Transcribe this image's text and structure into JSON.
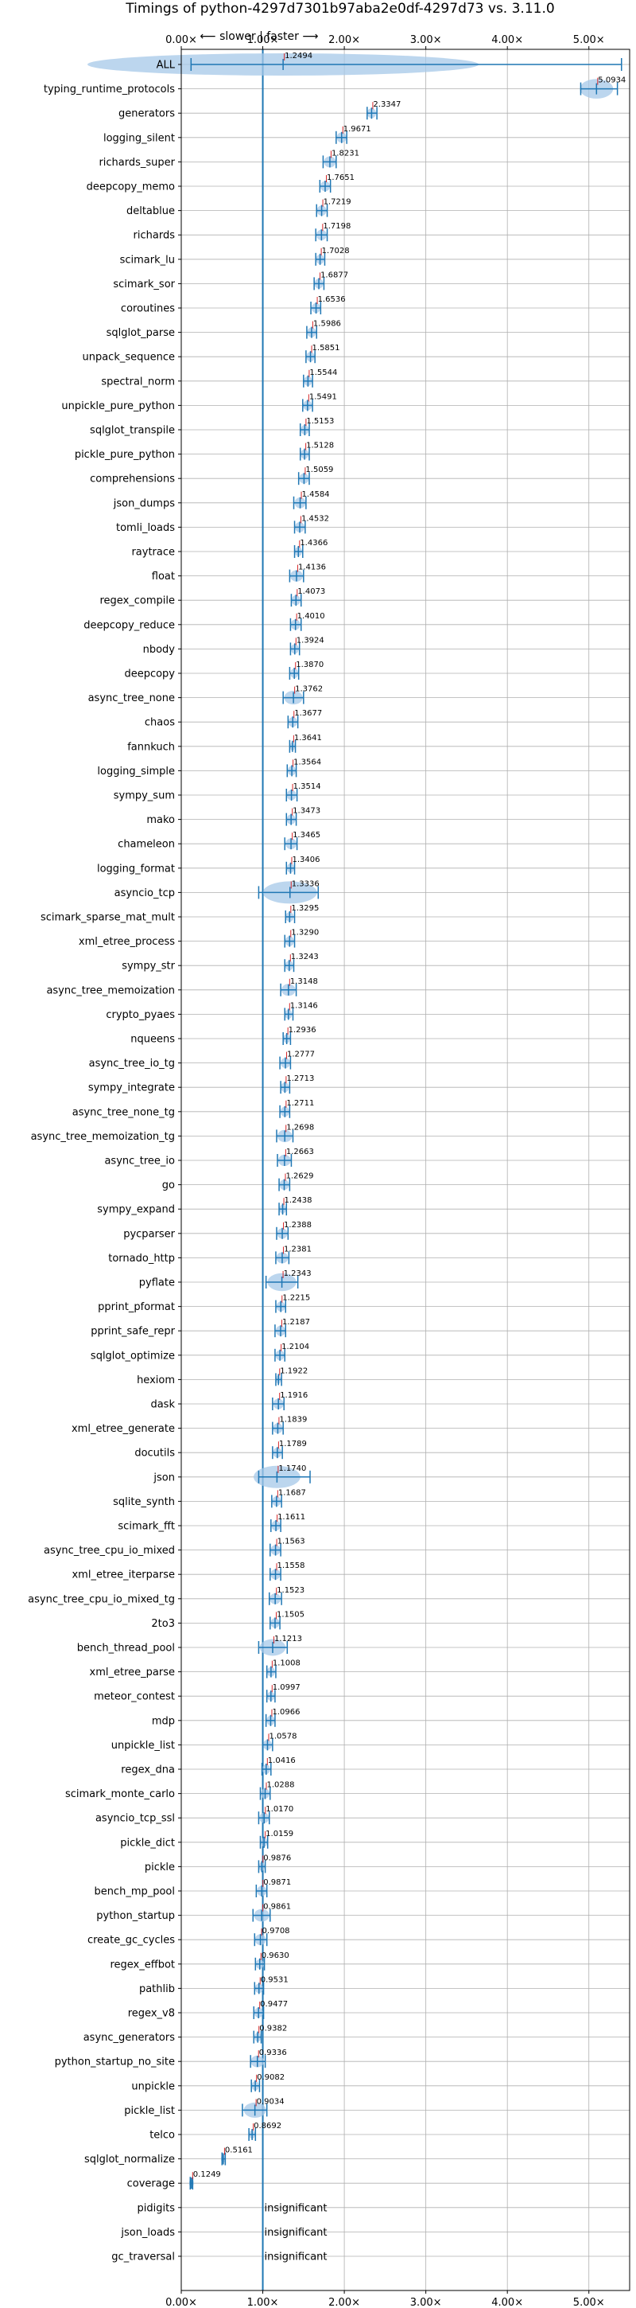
{
  "chart_data": {
    "type": "violin",
    "title": "Timings of python-4297d7301b97aba2e0df-4297d73 vs. 3.11.0",
    "subtitle": "⟵ slower  |  faster ⟶",
    "xlim": [
      0,
      5.5
    ],
    "xticks": [
      0,
      1,
      2,
      3,
      4,
      5
    ],
    "xtick_labels": [
      "0.00×",
      "1.00×",
      "2.00×",
      "3.00×",
      "4.00×",
      "5.00×"
    ],
    "reference_line": 1.0,
    "grid": true,
    "insignificant_label": "insignificant",
    "categories": [
      "ALL",
      "typing_runtime_protocols",
      "generators",
      "logging_silent",
      "richards_super",
      "deepcopy_memo",
      "deltablue",
      "richards",
      "scimark_lu",
      "scimark_sor",
      "coroutines",
      "sqlglot_parse",
      "unpack_sequence",
      "spectral_norm",
      "unpickle_pure_python",
      "sqlglot_transpile",
      "pickle_pure_python",
      "comprehensions",
      "json_dumps",
      "tomli_loads",
      "raytrace",
      "float",
      "regex_compile",
      "deepcopy_reduce",
      "nbody",
      "deepcopy",
      "async_tree_none",
      "chaos",
      "fannkuch",
      "logging_simple",
      "sympy_sum",
      "mako",
      "chameleon",
      "logging_format",
      "asyncio_tcp",
      "scimark_sparse_mat_mult",
      "xml_etree_process",
      "sympy_str",
      "async_tree_memoization",
      "crypto_pyaes",
      "nqueens",
      "async_tree_io_tg",
      "sympy_integrate",
      "async_tree_none_tg",
      "async_tree_memoization_tg",
      "async_tree_io",
      "go",
      "sympy_expand",
      "pycparser",
      "tornado_http",
      "pyflate",
      "pprint_pformat",
      "pprint_safe_repr",
      "sqlglot_optimize",
      "hexiom",
      "dask",
      "xml_etree_generate",
      "docutils",
      "json",
      "sqlite_synth",
      "scimark_fft",
      "async_tree_cpu_io_mixed",
      "xml_etree_iterparse",
      "async_tree_cpu_io_mixed_tg",
      "2to3",
      "bench_thread_pool",
      "xml_etree_parse",
      "meteor_contest",
      "mdp",
      "unpickle_list",
      "regex_dna",
      "scimark_monte_carlo",
      "asyncio_tcp_ssl",
      "pickle_dict",
      "pickle",
      "bench_mp_pool",
      "python_startup",
      "create_gc_cycles",
      "regex_effbot",
      "pathlib",
      "regex_v8",
      "async_generators",
      "python_startup_no_site",
      "unpickle",
      "pickle_list",
      "telco",
      "sqlglot_normalize",
      "coverage",
      "pidigits",
      "json_loads",
      "gc_traversal"
    ],
    "values": [
      1.2494,
      5.0934,
      2.3347,
      1.9671,
      1.8231,
      1.7651,
      1.7219,
      1.7198,
      1.7028,
      1.6877,
      1.6536,
      1.5986,
      1.5851,
      1.5544,
      1.5491,
      1.5153,
      1.5128,
      1.5059,
      1.4584,
      1.4532,
      1.4366,
      1.4136,
      1.4073,
      1.401,
      1.3924,
      1.387,
      1.3762,
      1.3677,
      1.3641,
      1.3564,
      1.3514,
      1.3473,
      1.3465,
      1.3406,
      1.3336,
      1.3295,
      1.329,
      1.3243,
      1.3148,
      1.3146,
      1.2936,
      1.2777,
      1.2713,
      1.2711,
      1.2698,
      1.2663,
      1.2629,
      1.2438,
      1.2388,
      1.2381,
      1.2343,
      1.2215,
      1.2187,
      1.2104,
      1.1922,
      1.1916,
      1.1839,
      1.1789,
      1.174,
      1.1687,
      1.1611,
      1.1563,
      1.1558,
      1.1523,
      1.1505,
      1.1213,
      1.1008,
      1.0997,
      1.0966,
      1.0578,
      1.0416,
      1.0288,
      1.017,
      1.0159,
      0.9876,
      0.9871,
      0.9861,
      0.9708,
      0.963,
      0.9531,
      0.9477,
      0.9382,
      0.9336,
      0.9082,
      0.9034,
      0.8692,
      0.5161,
      0.1249,
      null,
      null,
      null
    ],
    "value_labels": [
      "1.2494",
      "5.0934",
      "2.3347",
      "1.9671",
      "1.8231",
      "1.7651",
      "1.7219",
      "1.7198",
      "1.7028",
      "1.6877",
      "1.6536",
      "1.5986",
      "1.5851",
      "1.5544",
      "1.5491",
      "1.5153",
      "1.5128",
      "1.5059",
      "1.4584",
      "1.4532",
      "1.4366",
      "1.4136",
      "1.4073",
      "1.4010",
      "1.3924",
      "1.3870",
      "1.3762",
      "1.3677",
      "1.3641",
      "1.3564",
      "1.3514",
      "1.3473",
      "1.3465",
      "1.3406",
      "1.3336",
      "1.3295",
      "1.3290",
      "1.3243",
      "1.3148",
      "1.3146",
      "1.2936",
      "1.2777",
      "1.2713",
      "1.2711",
      "1.2698",
      "1.2663",
      "1.2629",
      "1.2438",
      "1.2388",
      "1.2381",
      "1.2343",
      "1.2215",
      "1.2187",
      "1.2104",
      "1.1922",
      "1.1916",
      "1.1839",
      "1.1789",
      "1.1740",
      "1.1687",
      "1.1611",
      "1.1563",
      "1.1558",
      "1.1523",
      "1.1505",
      "1.1213",
      "1.1008",
      "1.0997",
      "1.0966",
      "1.0578",
      "1.0416",
      "1.0288",
      "1.0170",
      "1.0159",
      "0.9876",
      "0.9871",
      "0.9861",
      "0.9708",
      "0.9630",
      "0.9531",
      "0.9477",
      "0.9382",
      "0.9336",
      "0.9082",
      "0.9034",
      "0.8692",
      "0.5161",
      "0.1249",
      "",
      "",
      ""
    ],
    "ranges": [
      [
        0.12,
        5.4
      ],
      [
        4.9,
        5.35
      ],
      [
        2.28,
        2.4
      ],
      [
        1.9,
        2.03
      ],
      [
        1.74,
        1.9
      ],
      [
        1.7,
        1.83
      ],
      [
        1.66,
        1.79
      ],
      [
        1.65,
        1.79
      ],
      [
        1.65,
        1.76
      ],
      [
        1.63,
        1.75
      ],
      [
        1.59,
        1.71
      ],
      [
        1.54,
        1.66
      ],
      [
        1.53,
        1.64
      ],
      [
        1.5,
        1.61
      ],
      [
        1.49,
        1.61
      ],
      [
        1.46,
        1.57
      ],
      [
        1.46,
        1.57
      ],
      [
        1.44,
        1.57
      ],
      [
        1.38,
        1.53
      ],
      [
        1.39,
        1.52
      ],
      [
        1.39,
        1.49
      ],
      [
        1.33,
        1.5
      ],
      [
        1.35,
        1.47
      ],
      [
        1.34,
        1.47
      ],
      [
        1.34,
        1.45
      ],
      [
        1.33,
        1.44
      ],
      [
        1.25,
        1.5
      ],
      [
        1.31,
        1.43
      ],
      [
        1.33,
        1.4
      ],
      [
        1.3,
        1.41
      ],
      [
        1.29,
        1.42
      ],
      [
        1.29,
        1.41
      ],
      [
        1.27,
        1.42
      ],
      [
        1.29,
        1.39
      ],
      [
        0.95,
        1.68
      ],
      [
        1.28,
        1.39
      ],
      [
        1.27,
        1.39
      ],
      [
        1.27,
        1.38
      ],
      [
        1.22,
        1.41
      ],
      [
        1.27,
        1.37
      ],
      [
        1.25,
        1.34
      ],
      [
        1.21,
        1.34
      ],
      [
        1.22,
        1.33
      ],
      [
        1.21,
        1.33
      ],
      [
        1.17,
        1.37
      ],
      [
        1.18,
        1.35
      ],
      [
        1.2,
        1.33
      ],
      [
        1.2,
        1.29
      ],
      [
        1.17,
        1.31
      ],
      [
        1.16,
        1.32
      ],
      [
        1.04,
        1.43
      ],
      [
        1.16,
        1.28
      ],
      [
        1.15,
        1.28
      ],
      [
        1.15,
        1.27
      ],
      [
        1.16,
        1.23
      ],
      [
        1.12,
        1.26
      ],
      [
        1.12,
        1.25
      ],
      [
        1.12,
        1.24
      ],
      [
        0.95,
        1.58
      ],
      [
        1.11,
        1.23
      ],
      [
        1.1,
        1.22
      ],
      [
        1.09,
        1.22
      ],
      [
        1.09,
        1.22
      ],
      [
        1.08,
        1.23
      ],
      [
        1.09,
        1.21
      ],
      [
        0.95,
        1.3
      ],
      [
        1.05,
        1.16
      ],
      [
        1.05,
        1.15
      ],
      [
        1.04,
        1.15
      ],
      [
        1.0,
        1.12
      ],
      [
        0.99,
        1.1
      ],
      [
        0.97,
        1.09
      ],
      [
        0.95,
        1.08
      ],
      [
        0.97,
        1.06
      ],
      [
        0.95,
        1.03
      ],
      [
        0.92,
        1.05
      ],
      [
        0.88,
        1.09
      ],
      [
        0.9,
        1.05
      ],
      [
        0.91,
        1.02
      ],
      [
        0.9,
        1.01
      ],
      [
        0.89,
        1.01
      ],
      [
        0.89,
        0.98
      ],
      [
        0.85,
        1.03
      ],
      [
        0.86,
        0.96
      ],
      [
        0.75,
        1.05
      ],
      [
        0.83,
        0.91
      ],
      [
        0.5,
        0.54
      ],
      [
        0.11,
        0.14
      ],
      null,
      null,
      null
    ],
    "marker_color": "#1f77b4",
    "violin_color": "#a6c8e8",
    "mean_mark_color": "#d62728"
  }
}
